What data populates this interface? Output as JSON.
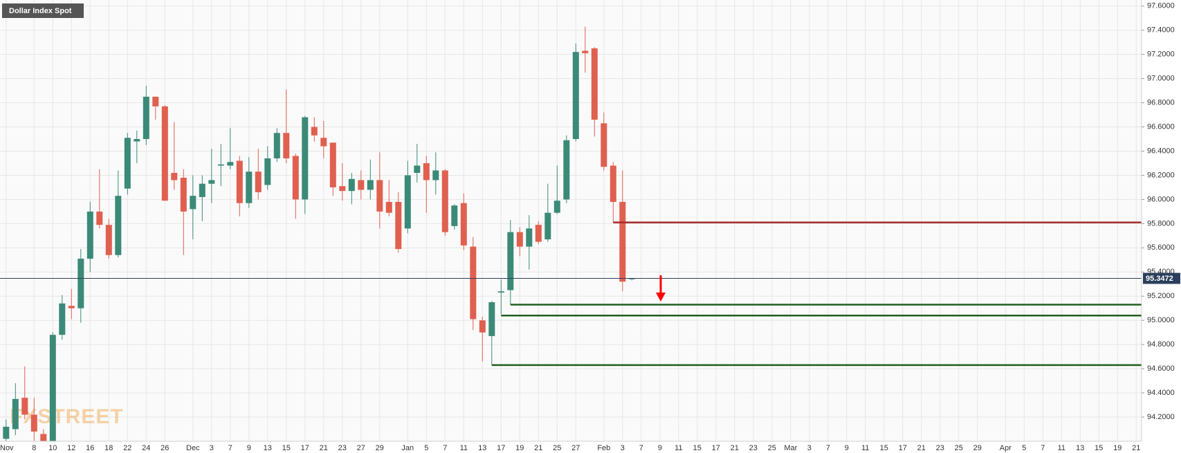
{
  "chart_data": {
    "type": "candlestick",
    "title": "Dollar Index Spot",
    "watermark": "FXSTREET",
    "categories": [
      "Nov",
      null,
      null,
      "8",
      null,
      "10",
      null,
      "12",
      null,
      "16",
      null,
      "18",
      null,
      "22",
      null,
      "24",
      null,
      "26",
      null,
      null,
      "Dec",
      null,
      "3",
      null,
      "7",
      null,
      "9",
      null,
      "13",
      null,
      "15",
      null,
      "17",
      null,
      "21",
      null,
      "23",
      null,
      "27",
      null,
      "29",
      null,
      null,
      "Jan",
      null,
      "5",
      null,
      "7",
      null,
      "11",
      null,
      "13",
      null,
      "17",
      null,
      "19",
      null,
      "21",
      null,
      "25",
      null,
      "27",
      null,
      null,
      "Feb",
      null,
      "3",
      null,
      "7",
      null,
      "9",
      null,
      "11",
      null,
      "15",
      null,
      "17",
      null,
      "21",
      null,
      "23",
      null,
      "25",
      null,
      "Mar",
      null,
      "3",
      null,
      "7",
      null,
      "9",
      null,
      "11",
      null,
      "15",
      null,
      "17",
      null,
      "21",
      null,
      "23",
      null,
      "25",
      null,
      "29",
      null,
      null,
      "Apr",
      null,
      "5",
      null,
      "7",
      null,
      "11",
      null,
      "13",
      null,
      "15",
      null,
      "19",
      null,
      "21"
    ],
    "open": [
      94.02,
      94.1,
      94.36,
      94.22,
      94.06,
      93.95,
      94.88,
      95.12,
      95.1,
      95.51,
      95.9,
      95.79,
      95.54,
      96.09,
      96.48,
      96.5,
      96.85,
      96.77,
      96.22,
      96.18,
      95.92,
      96.02,
      96.13,
      96.28,
      96.28,
      96.32,
      95.97,
      96.23,
      96.12,
      96.34,
      96.55,
      96.36,
      96.0,
      96.6,
      96.51,
      96.47,
      96.11,
      96.07,
      96.16,
      96.08,
      96.16,
      95.98,
      95.98,
      95.76,
      96.22,
      96.3,
      96.16,
      96.24,
      95.78,
      95.97,
      95.61,
      95.0,
      94.87,
      95.23,
      95.25,
      95.73,
      95.61,
      95.79,
      95.67,
      95.89,
      96.0,
      96.5,
      97.23,
      97.25,
      96.63,
      96.28,
      95.98,
      95.34,
      null,
      null,
      null,
      null,
      null,
      null,
      null,
      null,
      null,
      null,
      null,
      null,
      null,
      null,
      null,
      null,
      null,
      null,
      null,
      null,
      null,
      null,
      null,
      null,
      null,
      null,
      null,
      null,
      null,
      null,
      null,
      null,
      null,
      null,
      null,
      null,
      null,
      null,
      null,
      null,
      null,
      null,
      null,
      null,
      null,
      null,
      null,
      null,
      null,
      null,
      null,
      null,
      null,
      null
    ],
    "high": [
      94.18,
      94.48,
      94.62,
      94.36,
      94.1,
      94.9,
      95.21,
      95.26,
      95.59,
      95.98,
      96.25,
      95.84,
      96.24,
      96.55,
      96.57,
      96.94,
      96.85,
      96.78,
      96.64,
      96.25,
      96.2,
      96.2,
      96.42,
      96.46,
      96.59,
      96.36,
      96.35,
      96.42,
      96.44,
      96.59,
      96.91,
      96.38,
      96.69,
      96.68,
      96.65,
      96.47,
      96.3,
      96.22,
      96.24,
      96.33,
      96.39,
      96.16,
      96.06,
      96.32,
      96.46,
      96.36,
      96.39,
      96.25,
      95.96,
      96.05,
      95.69,
      95.03,
      95.16,
      95.34,
      95.83,
      95.77,
      95.87,
      95.82,
      96.13,
      96.28,
      96.53,
      97.29,
      97.43,
      97.26,
      96.72,
      96.31,
      96.24,
      95.35,
      null,
      null,
      null,
      null,
      null,
      null,
      null,
      null,
      null,
      null,
      null,
      null,
      null,
      null,
      null,
      null,
      null,
      null,
      null,
      null,
      null,
      null,
      null,
      null,
      null,
      null,
      null,
      null,
      null,
      null,
      null,
      null,
      null,
      null,
      null,
      null,
      null,
      null,
      null,
      null,
      null,
      null,
      null,
      null,
      null,
      null,
      null,
      null,
      null,
      null,
      null,
      null,
      null,
      null
    ],
    "low": [
      93.96,
      94.05,
      94.18,
      93.98,
      93.9,
      93.92,
      94.84,
      95.01,
      94.98,
      95.4,
      95.76,
      95.51,
      95.52,
      96.04,
      96.3,
      96.45,
      96.66,
      95.99,
      96.08,
      95.54,
      95.67,
      95.82,
      95.97,
      96.11,
      96.25,
      95.86,
      95.93,
      96.0,
      96.08,
      96.31,
      96.3,
      95.84,
      95.88,
      96.48,
      96.34,
      96.03,
      95.99,
      95.96,
      96.0,
      96.0,
      95.76,
      95.86,
      95.56,
      95.72,
      96.14,
      95.89,
      96.04,
      95.7,
      95.75,
      95.58,
      94.92,
      94.66,
      94.63,
      95.05,
      95.13,
      95.53,
      95.42,
      95.63,
      95.65,
      95.88,
      95.97,
      96.48,
      97.05,
      96.52,
      96.24,
      95.81,
      95.24,
      95.33,
      null,
      null,
      null,
      null,
      null,
      null,
      null,
      null,
      null,
      null,
      null,
      null,
      null,
      null,
      null,
      null,
      null,
      null,
      null,
      null,
      null,
      null,
      null,
      null,
      null,
      null,
      null,
      null,
      null,
      null,
      null,
      null,
      null,
      null,
      null,
      null,
      null,
      null,
      null,
      null,
      null,
      null,
      null,
      null,
      null,
      null,
      null,
      null,
      null,
      null,
      null,
      null,
      null,
      null
    ],
    "close": [
      94.12,
      94.35,
      94.22,
      94.08,
      93.95,
      94.88,
      95.14,
      95.1,
      95.51,
      95.9,
      95.79,
      95.54,
      96.03,
      96.51,
      96.5,
      96.85,
      96.77,
      95.99,
      96.16,
      95.9,
      96.03,
      96.13,
      96.16,
      96.29,
      96.31,
      95.97,
      96.23,
      96.06,
      96.34,
      96.55,
      96.34,
      96.0,
      96.68,
      96.53,
      96.44,
      96.1,
      96.07,
      96.17,
      96.08,
      96.16,
      95.9,
      95.89,
      95.59,
      96.2,
      96.28,
      96.16,
      96.24,
      95.73,
      95.95,
      95.62,
      95.01,
      94.9,
      95.15,
      95.24,
      95.73,
      95.61,
      95.76,
      95.65,
      95.89,
      95.99,
      96.49,
      97.22,
      97.21,
      96.66,
      96.27,
      95.98,
      95.32,
      95.3472,
      null,
      null,
      null,
      null,
      null,
      null,
      null,
      null,
      null,
      null,
      null,
      null,
      null,
      null,
      null,
      null,
      null,
      null,
      null,
      null,
      null,
      null,
      null,
      null,
      null,
      null,
      null,
      null,
      null,
      null,
      null,
      null,
      null,
      null,
      null,
      null,
      null,
      null,
      null,
      null,
      null,
      null,
      null,
      null,
      null,
      null,
      null,
      null,
      null,
      null,
      null,
      null,
      null,
      null
    ],
    "up_color": "#3b8a78",
    "down_color": "#e0604f",
    "last_price": 95.3472,
    "levels": [
      {
        "value": 95.81,
        "x0": 65,
        "color": "#a52a2a"
      },
      {
        "value": 95.13,
        "x0": 54,
        "color": "#1f5f1f"
      },
      {
        "value": 95.04,
        "x0": 53,
        "color": "#1f5f1f"
      },
      {
        "value": 94.63,
        "x0": 52,
        "color": "#1f5f1f"
      }
    ],
    "ylim": [
      94.0,
      97.65
    ],
    "yticks": [
      {
        "value": 94.2,
        "label": "94.2000"
      },
      {
        "value": 94.4,
        "label": "94.4000"
      },
      {
        "value": 94.6,
        "label": "94.6000"
      },
      {
        "value": 94.8,
        "label": "94.8000"
      },
      {
        "value": 95.0,
        "label": "95.0000"
      },
      {
        "value": 95.2,
        "label": "95.2000"
      },
      {
        "value": 95.4,
        "label": "95.4000"
      },
      {
        "value": 95.6,
        "label": "95.6000"
      },
      {
        "value": 95.8,
        "label": "95.8000"
      },
      {
        "value": 96.0,
        "label": "96.0000"
      },
      {
        "value": 96.2,
        "label": "96.2000"
      },
      {
        "value": 96.4,
        "label": "96.4000"
      },
      {
        "value": 96.6,
        "label": "96.6000"
      },
      {
        "value": 96.8,
        "label": "96.8000"
      },
      {
        "value": 97.0,
        "label": "97.0000"
      },
      {
        "value": 97.2,
        "label": "97.2000"
      },
      {
        "value": 97.4,
        "label": "97.4000"
      },
      {
        "value": 97.6,
        "label": "97.6000"
      }
    ],
    "grid": true
  }
}
